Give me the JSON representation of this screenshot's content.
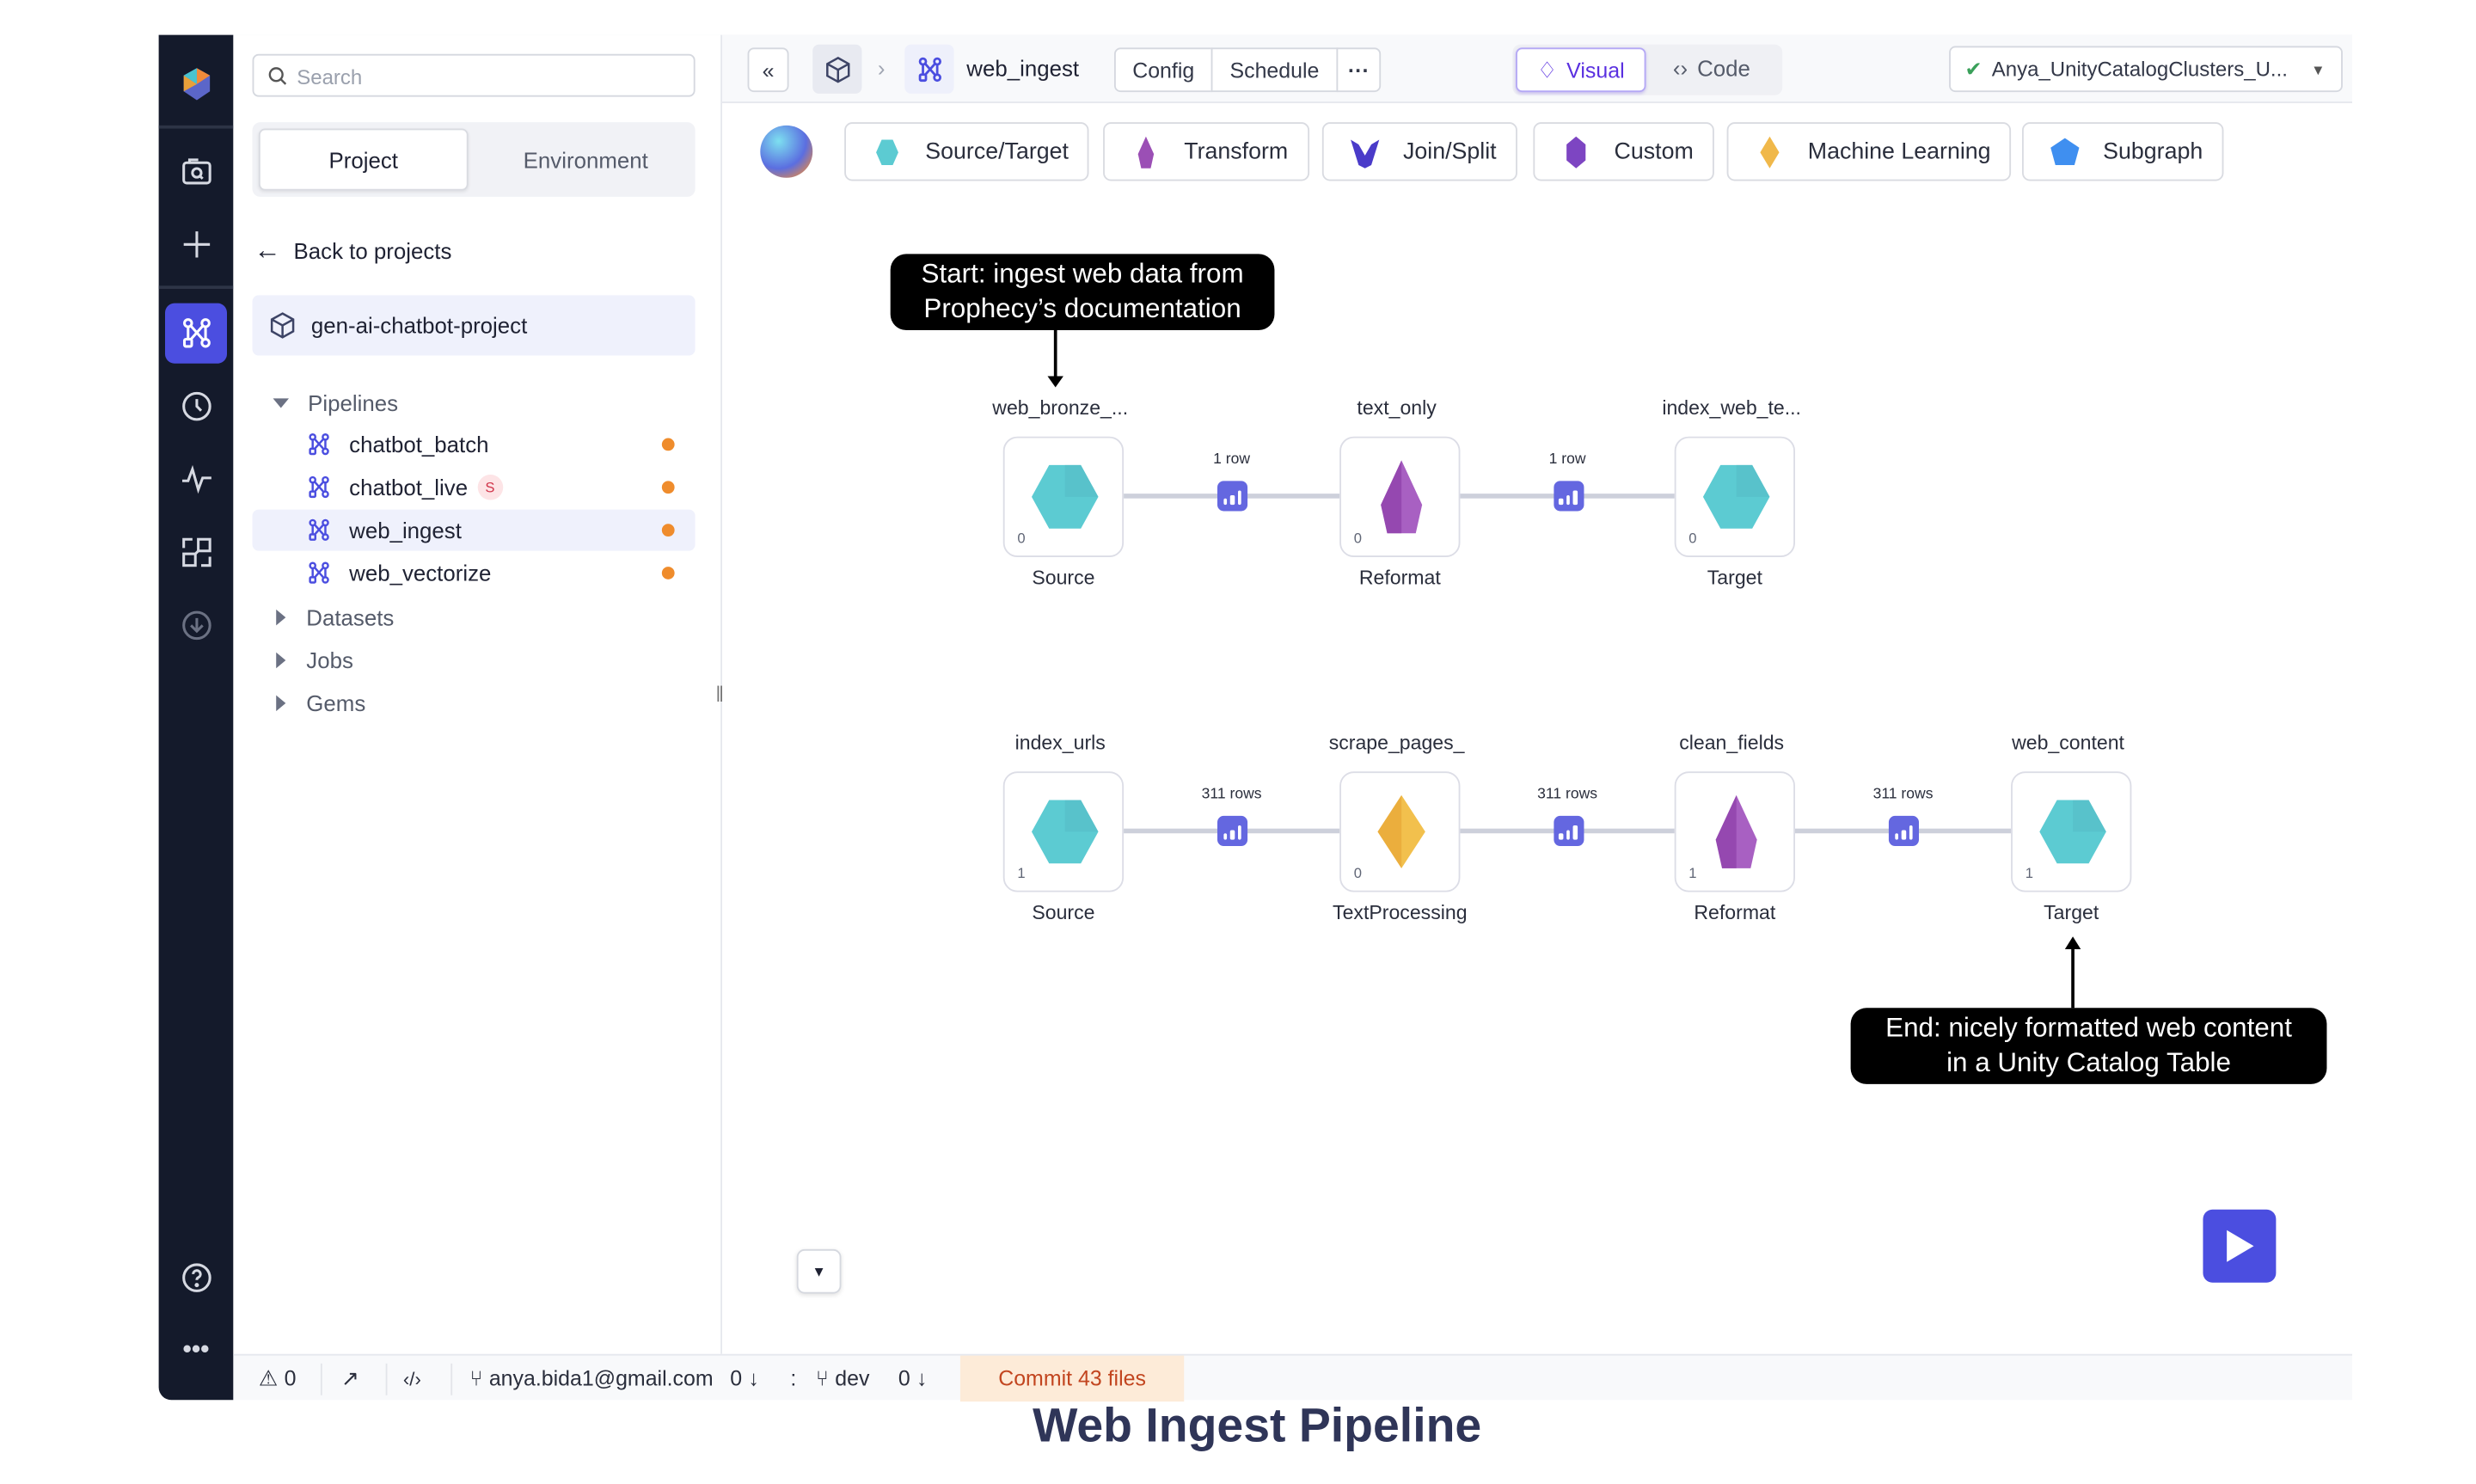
{
  "sidebar": {
    "search_placeholder": "Search",
    "tabs": [
      {
        "label": "Project",
        "active": true
      },
      {
        "label": "Environment",
        "active": false
      }
    ],
    "back_label": "Back to projects",
    "project_name": "gen-ai-chatbot-project",
    "tree": {
      "pipelines_label": "Pipelines",
      "pipelines": [
        {
          "name": "chatbot_batch",
          "modified": true
        },
        {
          "name": "chatbot_live",
          "badge": "S",
          "modified": true
        },
        {
          "name": "web_ingest",
          "selected": true,
          "modified": true
        },
        {
          "name": "web_vectorize",
          "modified": true
        }
      ],
      "datasets_label": "Datasets",
      "jobs_label": "Jobs",
      "gems_label": "Gems"
    }
  },
  "topbar": {
    "pipeline_name": "web_ingest",
    "config_label": "Config",
    "schedule_label": "Schedule",
    "more_label": "···",
    "visual_label": "Visual",
    "code_label": "Code",
    "cluster_name": "Anya_UnityCatalogClusters_U...",
    "cluster_status": "connected"
  },
  "gem_bar": [
    {
      "label": "Source/Target",
      "icon": "source-target-gem-icon",
      "color": "#5ccbd2"
    },
    {
      "label": "Transform",
      "icon": "transform-gem-icon",
      "color": "#9b4fb5"
    },
    {
      "label": "Join/Split",
      "icon": "join-split-gem-icon",
      "color": "#4a3bc9"
    },
    {
      "label": "Custom",
      "icon": "custom-gem-icon",
      "color": "#7d45c2"
    },
    {
      "label": "Machine Learning",
      "icon": "machine-learning-gem-icon",
      "color": "#f0b84a"
    },
    {
      "label": "Subgraph",
      "icon": "subgraph-gem-icon",
      "color": "#3f8ff0"
    }
  ],
  "graph": {
    "row1": {
      "nodes": [
        {
          "name": "web_bronze_...",
          "type": "Source",
          "count": "0",
          "kind": "source"
        },
        {
          "name": "text_only",
          "type": "Reformat",
          "count": "0",
          "kind": "transform"
        },
        {
          "name": "index_web_te...",
          "type": "Target",
          "count": "0",
          "kind": "source"
        }
      ],
      "edges": [
        "1 row",
        "1 row"
      ]
    },
    "row2": {
      "nodes": [
        {
          "name": "index_urls",
          "type": "Source",
          "count": "1",
          "kind": "source"
        },
        {
          "name": "scrape_pages_",
          "type": "TextProcessing",
          "count": "0",
          "kind": "ml"
        },
        {
          "name": "clean_fields",
          "type": "Reformat",
          "count": "1",
          "kind": "transform"
        },
        {
          "name": "web_content",
          "type": "Target",
          "count": "1",
          "kind": "source"
        }
      ],
      "edges": [
        "311 rows",
        "311 rows",
        "311 rows"
      ]
    },
    "callout_start": [
      "Start: ingest web data from",
      "Prophecy’s documentation"
    ],
    "callout_end": [
      "End: nicely formatted web content",
      "in a Unity Catalog Table"
    ]
  },
  "status": {
    "warnings": "0",
    "user": "anya.bida1@gmail.com",
    "user_behind": "0",
    "separator": ":",
    "branch": "dev",
    "branch_behind": "0",
    "commit_label": "Commit 43 files"
  },
  "caption": "Web Ingest Pipeline"
}
